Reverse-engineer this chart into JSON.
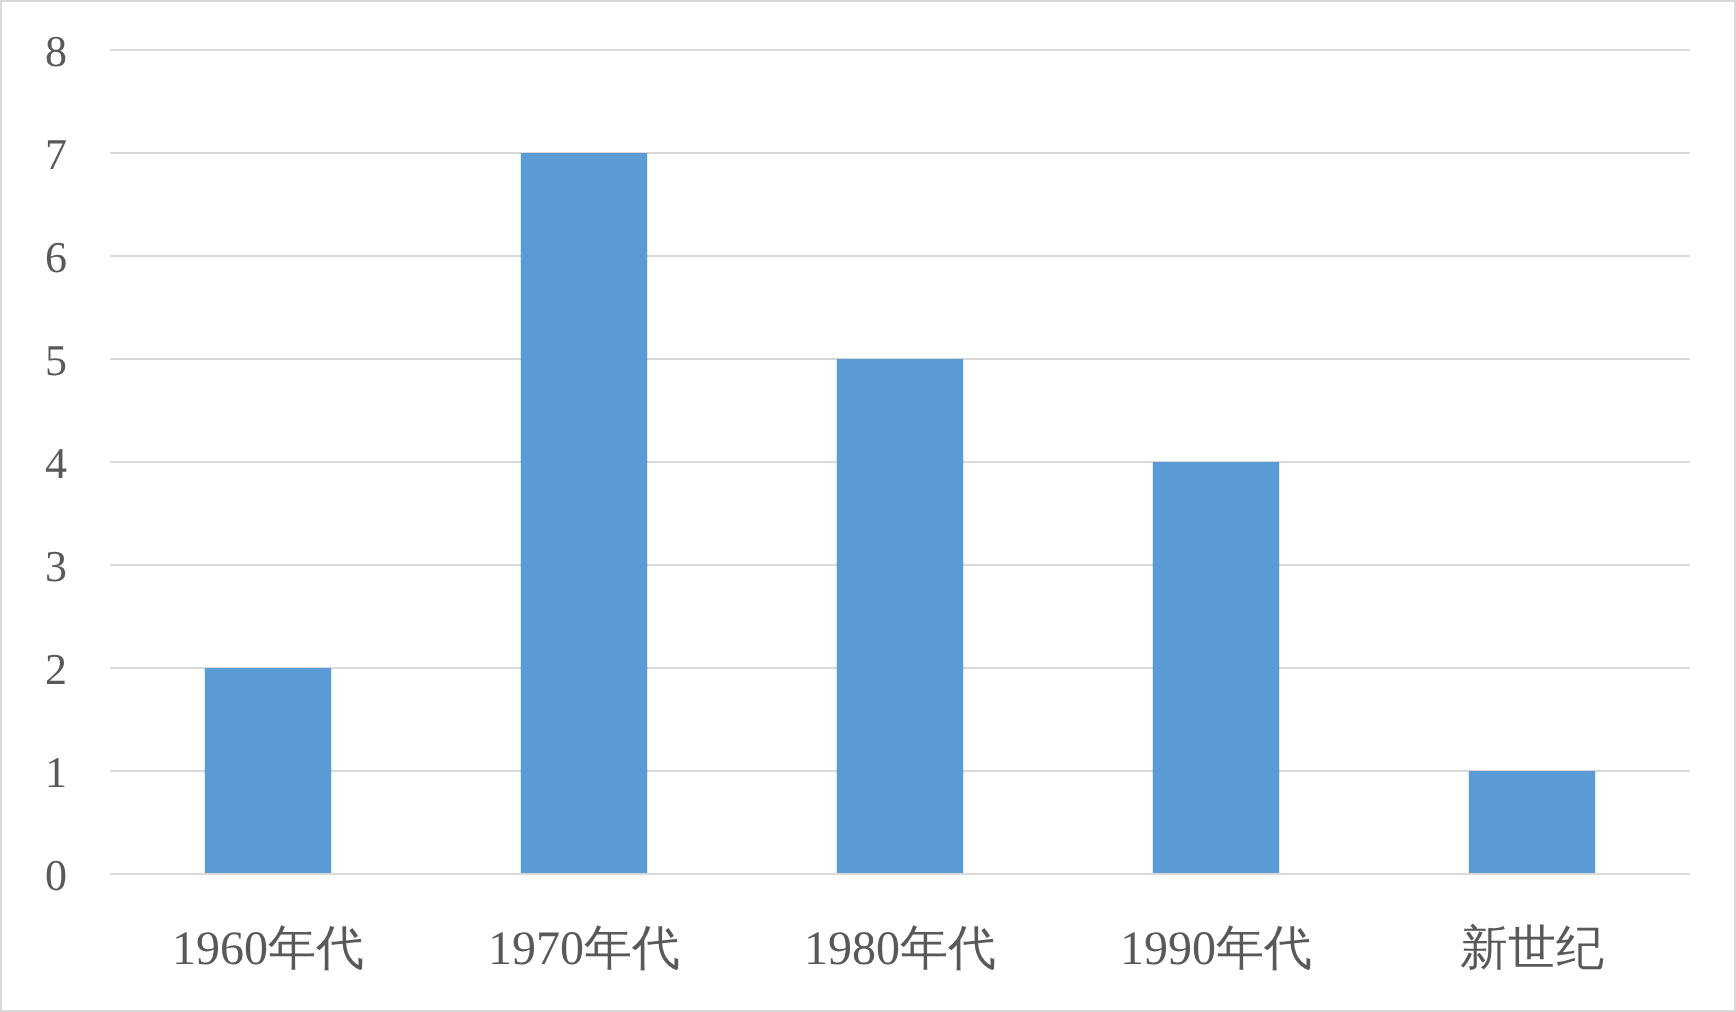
{
  "chart_data": {
    "type": "bar",
    "categories": [
      "1960年代",
      "1970年代",
      "1980年代",
      "1990年代",
      "新世纪"
    ],
    "values": [
      2,
      7,
      5,
      4,
      1
    ],
    "color": "#5b9bd5",
    "ylim": [
      0,
      8
    ],
    "yticks": [
      0,
      1,
      2,
      3,
      4,
      5,
      6,
      7,
      8
    ],
    "grid": "y"
  }
}
